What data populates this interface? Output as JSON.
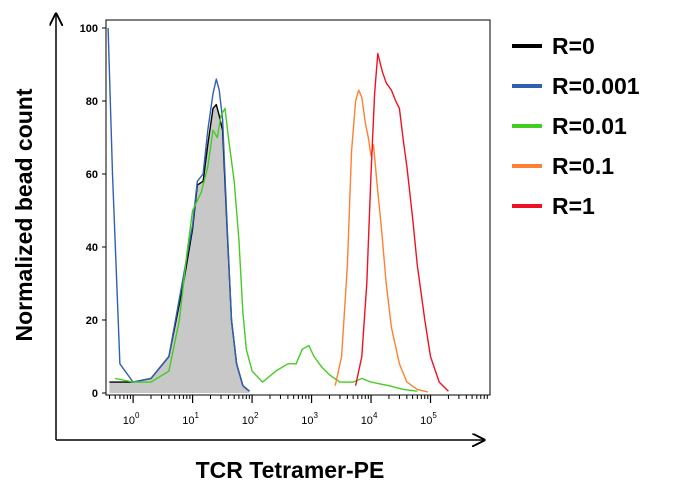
{
  "chart_data": {
    "type": "area",
    "xlabel": "TCR Tetramer-PE",
    "ylabel": "Normalized bead count",
    "x_scale": "log",
    "xlim": [
      0.35,
      1000000
    ],
    "ylim": [
      0,
      100
    ],
    "x_ticks": [
      {
        "base": "10",
        "exp": "0",
        "value": 1
      },
      {
        "base": "10",
        "exp": "1",
        "value": 10
      },
      {
        "base": "10",
        "exp": "2",
        "value": 100
      },
      {
        "base": "10",
        "exp": "3",
        "value": 1000
      },
      {
        "base": "10",
        "exp": "4",
        "value": 10000
      },
      {
        "base": "10",
        "exp": "5",
        "value": 100000
      }
    ],
    "y_ticks": [
      0,
      20,
      40,
      60,
      80,
      100
    ],
    "legend_position": "right",
    "series": [
      {
        "name": "R=0",
        "color": "#000000",
        "filled": true,
        "fill": "#c8c8c8",
        "points": [
          [
            0.4,
            3
          ],
          [
            1,
            3
          ],
          [
            2,
            4
          ],
          [
            4,
            10
          ],
          [
            7,
            30
          ],
          [
            10,
            45
          ],
          [
            12,
            57
          ],
          [
            15,
            58
          ],
          [
            18,
            68
          ],
          [
            22,
            78
          ],
          [
            25,
            79
          ],
          [
            28,
            76
          ],
          [
            32,
            72
          ],
          [
            38,
            45
          ],
          [
            45,
            20
          ],
          [
            55,
            8
          ],
          [
            70,
            2
          ],
          [
            90,
            0.5
          ]
        ]
      },
      {
        "name": "R=0.001",
        "color": "#3060b0",
        "filled": false,
        "points": [
          [
            0.38,
            100
          ],
          [
            0.45,
            60
          ],
          [
            0.6,
            8
          ],
          [
            1,
            3
          ],
          [
            2,
            4
          ],
          [
            4,
            10
          ],
          [
            7,
            32
          ],
          [
            10,
            46
          ],
          [
            12,
            58
          ],
          [
            15,
            60
          ],
          [
            18,
            72
          ],
          [
            22,
            82
          ],
          [
            25,
            86
          ],
          [
            28,
            83
          ],
          [
            32,
            75
          ],
          [
            38,
            46
          ],
          [
            45,
            20
          ],
          [
            55,
            8
          ],
          [
            70,
            2
          ],
          [
            90,
            0.5
          ]
        ]
      },
      {
        "name": "R=0.01",
        "color": "#44cc22",
        "filled": false,
        "points": [
          [
            0.5,
            4
          ],
          [
            1,
            3
          ],
          [
            2,
            3
          ],
          [
            4,
            6
          ],
          [
            6,
            20
          ],
          [
            8,
            38
          ],
          [
            10,
            50
          ],
          [
            14,
            55
          ],
          [
            18,
            62
          ],
          [
            22,
            72
          ],
          [
            26,
            70
          ],
          [
            30,
            76
          ],
          [
            35,
            78
          ],
          [
            40,
            70
          ],
          [
            50,
            58
          ],
          [
            60,
            42
          ],
          [
            70,
            22
          ],
          [
            80,
            12
          ],
          [
            100,
            6
          ],
          [
            150,
            3
          ],
          [
            250,
            6
          ],
          [
            400,
            8
          ],
          [
            550,
            8
          ],
          [
            700,
            12
          ],
          [
            900,
            13
          ],
          [
            1100,
            10
          ],
          [
            1500,
            7
          ],
          [
            2000,
            5
          ],
          [
            3000,
            3
          ],
          [
            5000,
            3
          ],
          [
            7000,
            4
          ],
          [
            10000,
            3
          ],
          [
            20000,
            2
          ],
          [
            35000,
            1
          ],
          [
            60000,
            0.5
          ]
        ]
      },
      {
        "name": "R=0.1",
        "color": "#ff8030",
        "filled": false,
        "points": [
          [
            2500,
            2
          ],
          [
            3200,
            10
          ],
          [
            4000,
            35
          ],
          [
            4700,
            66
          ],
          [
            5500,
            80
          ],
          [
            6200,
            83
          ],
          [
            7000,
            81
          ],
          [
            8000,
            74
          ],
          [
            9000,
            70
          ],
          [
            10000,
            65
          ],
          [
            11000,
            68
          ],
          [
            12500,
            58
          ],
          [
            15000,
            45
          ],
          [
            18000,
            30
          ],
          [
            22000,
            18
          ],
          [
            30000,
            8
          ],
          [
            40000,
            3
          ],
          [
            60000,
            1
          ],
          [
            90000,
            0.3
          ]
        ]
      },
      {
        "name": "R=1",
        "color": "#ee1122",
        "filled": false,
        "points": [
          [
            5500,
            2
          ],
          [
            7000,
            10
          ],
          [
            8500,
            30
          ],
          [
            10000,
            60
          ],
          [
            11500,
            82
          ],
          [
            13000,
            93
          ],
          [
            15500,
            88
          ],
          [
            18000,
            85
          ],
          [
            22000,
            83
          ],
          [
            26000,
            80
          ],
          [
            30000,
            78
          ],
          [
            35000,
            69
          ],
          [
            40000,
            62
          ],
          [
            50000,
            48
          ],
          [
            60000,
            35
          ],
          [
            80000,
            20
          ],
          [
            100000,
            10
          ],
          [
            140000,
            3
          ],
          [
            200000,
            0.5
          ]
        ]
      }
    ]
  }
}
